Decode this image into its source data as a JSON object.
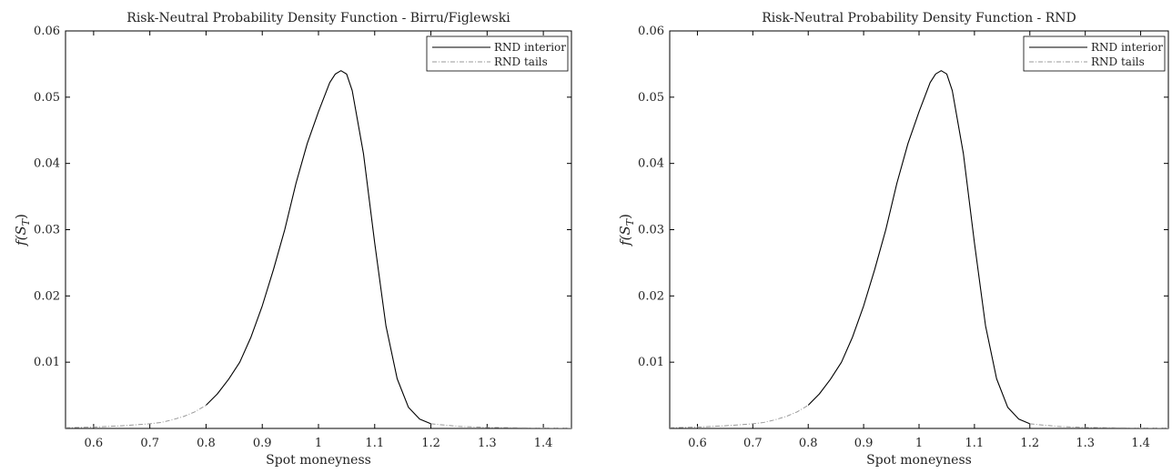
{
  "chart_data": [
    {
      "type": "line",
      "title": "Risk-Neutral Probability Density Function - Birru/Figlewski",
      "xlabel": "Spot moneyness",
      "ylabel_main": "f(S",
      "ylabel_sub": "T",
      "ylabel_tail": ")",
      "xlim": [
        0.55,
        1.45
      ],
      "ylim": [
        0,
        0.06
      ],
      "xticks": [
        0.6,
        0.7,
        0.8,
        0.9,
        1,
        1.1,
        1.2,
        1.3,
        1.4
      ],
      "xtick_labels": [
        "0.6",
        "0.7",
        "0.8",
        "0.9",
        "1",
        "1.1",
        "1.2",
        "1.3",
        "1.4"
      ],
      "yticks": [
        0.01,
        0.02,
        0.03,
        0.04,
        0.05,
        0.06
      ],
      "ytick_labels": [
        "0.01",
        "0.02",
        "0.03",
        "0.04",
        "0.05",
        "0.06"
      ],
      "grid": false,
      "legend_position": "top-right",
      "series": [
        {
          "name": "RND interior",
          "style": "solid",
          "color": "#000000",
          "x": [
            0.8,
            0.82,
            0.84,
            0.86,
            0.88,
            0.9,
            0.92,
            0.94,
            0.96,
            0.98,
            1.0,
            1.02,
            1.03,
            1.04,
            1.05,
            1.06,
            1.08,
            1.1,
            1.12,
            1.14,
            1.16,
            1.18,
            1.2
          ],
          "y": [
            0.0035,
            0.0052,
            0.0074,
            0.01,
            0.0138,
            0.0185,
            0.024,
            0.03,
            0.037,
            0.043,
            0.0478,
            0.0522,
            0.0535,
            0.054,
            0.0535,
            0.051,
            0.0415,
            0.028,
            0.0155,
            0.0075,
            0.0032,
            0.0014,
            0.0007
          ]
        },
        {
          "name": "RND tails",
          "style": "dashdot",
          "color": "#999999",
          "x": [
            0.55,
            0.6,
            0.65,
            0.7,
            0.72,
            0.74,
            0.76,
            0.78,
            0.8,
            null,
            1.2,
            1.25,
            1.3,
            1.35,
            1.4,
            1.45
          ],
          "y": [
            0.0001,
            0.0002,
            0.0004,
            0.0007,
            0.0009,
            0.0013,
            0.0018,
            0.0025,
            0.0035,
            null,
            0.0007,
            0.0003,
            0.00015,
            0.0001,
            5e-05,
            3e-05
          ]
        }
      ]
    },
    {
      "type": "line",
      "title": "Risk-Neutral Probability Density Function - RND",
      "xlabel": "Spot moneyness",
      "ylabel_main": "f(S",
      "ylabel_sub": "T",
      "ylabel_tail": ")",
      "xlim": [
        0.55,
        1.45
      ],
      "ylim": [
        0,
        0.06
      ],
      "xticks": [
        0.6,
        0.7,
        0.8,
        0.9,
        1,
        1.1,
        1.2,
        1.3,
        1.4
      ],
      "xtick_labels": [
        "0.6",
        "0.7",
        "0.8",
        "0.9",
        "1",
        "1.1",
        "1.2",
        "1.3",
        "1.4"
      ],
      "yticks": [
        0.01,
        0.02,
        0.03,
        0.04,
        0.05,
        0.06
      ],
      "ytick_labels": [
        "0.01",
        "0.02",
        "0.03",
        "0.04",
        "0.05",
        "0.06"
      ],
      "grid": false,
      "legend_position": "top-right",
      "series": [
        {
          "name": "RND interior",
          "style": "solid",
          "color": "#000000",
          "x": [
            0.8,
            0.82,
            0.84,
            0.86,
            0.88,
            0.9,
            0.92,
            0.94,
            0.96,
            0.98,
            1.0,
            1.02,
            1.03,
            1.04,
            1.05,
            1.06,
            1.08,
            1.1,
            1.12,
            1.14,
            1.16,
            1.18,
            1.2
          ],
          "y": [
            0.0035,
            0.0052,
            0.0074,
            0.01,
            0.0138,
            0.0185,
            0.024,
            0.03,
            0.037,
            0.043,
            0.0478,
            0.0522,
            0.0535,
            0.054,
            0.0535,
            0.051,
            0.0415,
            0.028,
            0.0155,
            0.0075,
            0.0032,
            0.0014,
            0.0007
          ]
        },
        {
          "name": "RND tails",
          "style": "dashdot",
          "color": "#999999",
          "x": [
            0.55,
            0.6,
            0.65,
            0.7,
            0.72,
            0.74,
            0.76,
            0.78,
            0.8,
            null,
            1.2,
            1.25,
            1.3,
            1.35,
            1.4,
            1.45
          ],
          "y": [
            0.0001,
            0.0002,
            0.0004,
            0.0007,
            0.0009,
            0.0013,
            0.0018,
            0.0025,
            0.0035,
            null,
            0.0007,
            0.0003,
            0.00015,
            0.0001,
            5e-05,
            3e-05
          ]
        }
      ]
    }
  ]
}
